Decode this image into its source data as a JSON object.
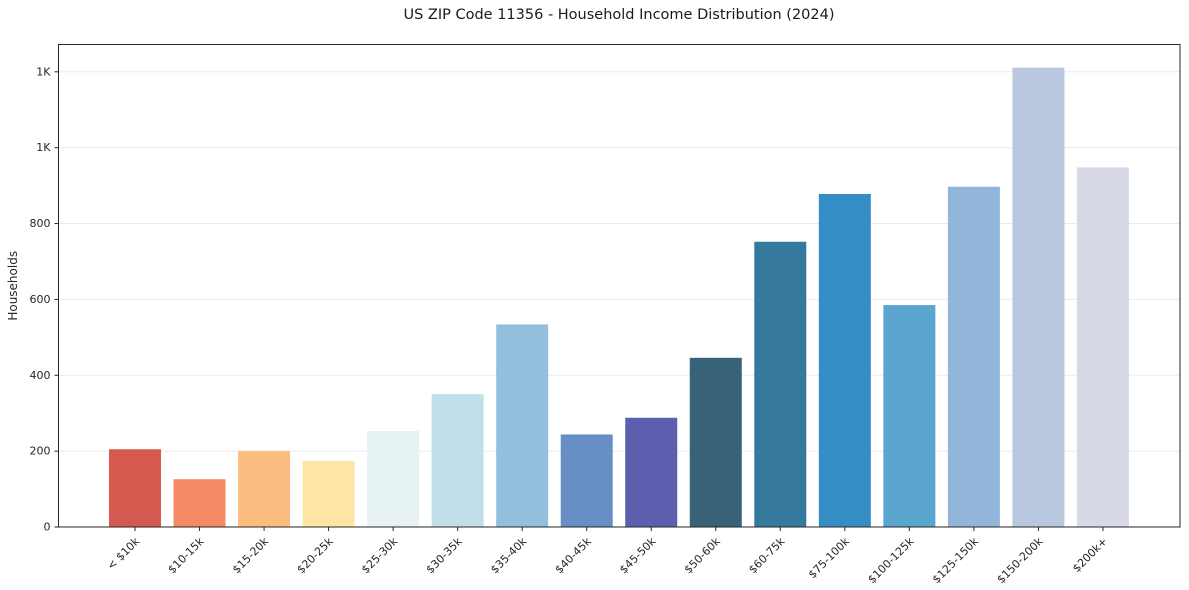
{
  "chart_data": {
    "type": "bar",
    "title": "US ZIP Code 11356 - Household Income Distribution (2024)",
    "xlabel": "",
    "ylabel": "Households",
    "categories": [
      "< $10k",
      "$10-15k",
      "$15-20k",
      "$20-25k",
      "$25-30k",
      "$30-35k",
      "$35-40k",
      "$40-45k",
      "$45-50k",
      "$50-60k",
      "$60-75k",
      "$75-100k",
      "$100-125k",
      "$125-150k",
      "$150-200k",
      "$200k+"
    ],
    "values": [
      205,
      126,
      200,
      174,
      253,
      350,
      534,
      244,
      288,
      446,
      752,
      878,
      585,
      897,
      1211,
      948
    ],
    "bar_colors": [
      "#d6594f",
      "#f58a64",
      "#fcbd80",
      "#fde5a6",
      "#e7f2f5",
      "#c0dfeb",
      "#93bedd",
      "#678fc5",
      "#5d5fae",
      "#386277",
      "#35799f",
      "#348dc4",
      "#5ba6ce",
      "#91b6d9",
      "#b9c8df",
      "#d8d9e7"
    ],
    "ylim": [
      0,
      1272
    ],
    "y_ticks": {
      "values": [
        0,
        200,
        400,
        600,
        800,
        1000,
        1200
      ],
      "labels": [
        "0",
        "200",
        "400",
        "600",
        "800",
        "1K",
        "1K"
      ]
    },
    "grid": true,
    "legend": "none",
    "axis_color": "#262626",
    "grid_color": "#ebebeb",
    "background": "#ffffff"
  }
}
